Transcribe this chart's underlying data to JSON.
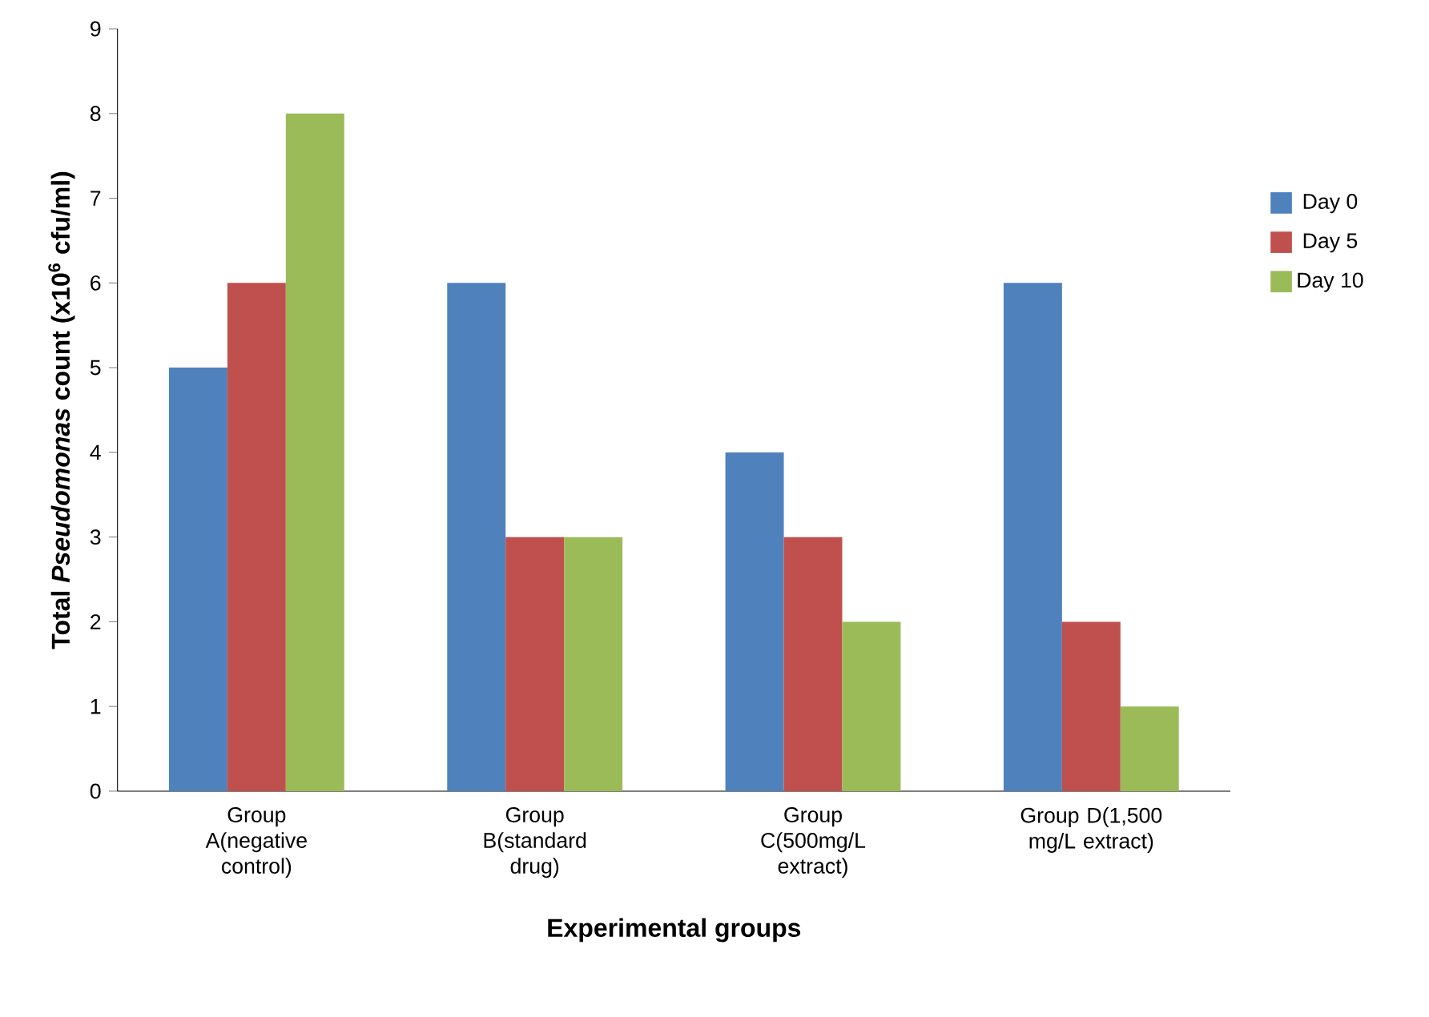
{
  "chart_data": {
    "type": "bar",
    "xlabel": "Experimental groups",
    "ylabel": "**Total *Pseudomonas* count (x10$^{6}$ cfu/ml)**",
    "categories": [
      "Group A(negative control)",
      "Group B(standard drug)",
      "Group C(500mg/L extract)",
      "Group D(1,500 mg/L extract)"
    ],
    "series": [
      {
        "name": "Day 0",
        "color": "#4f81bd",
        "values": [
          5,
          6,
          4,
          6
        ]
      },
      {
        "name": "Day 5",
        "color": "#c0504d",
        "values": [
          6,
          3,
          3,
          2
        ]
      },
      {
        "name": "Day 10",
        "color": "#9bbb59",
        "values": [
          8,
          3,
          2,
          1
        ]
      }
    ],
    "ylim": [
      0,
      9
    ],
    "yticks": [
      0,
      1,
      2,
      3,
      4,
      5,
      6,
      7,
      8,
      9
    ],
    "legend": "right",
    "grid": false
  }
}
